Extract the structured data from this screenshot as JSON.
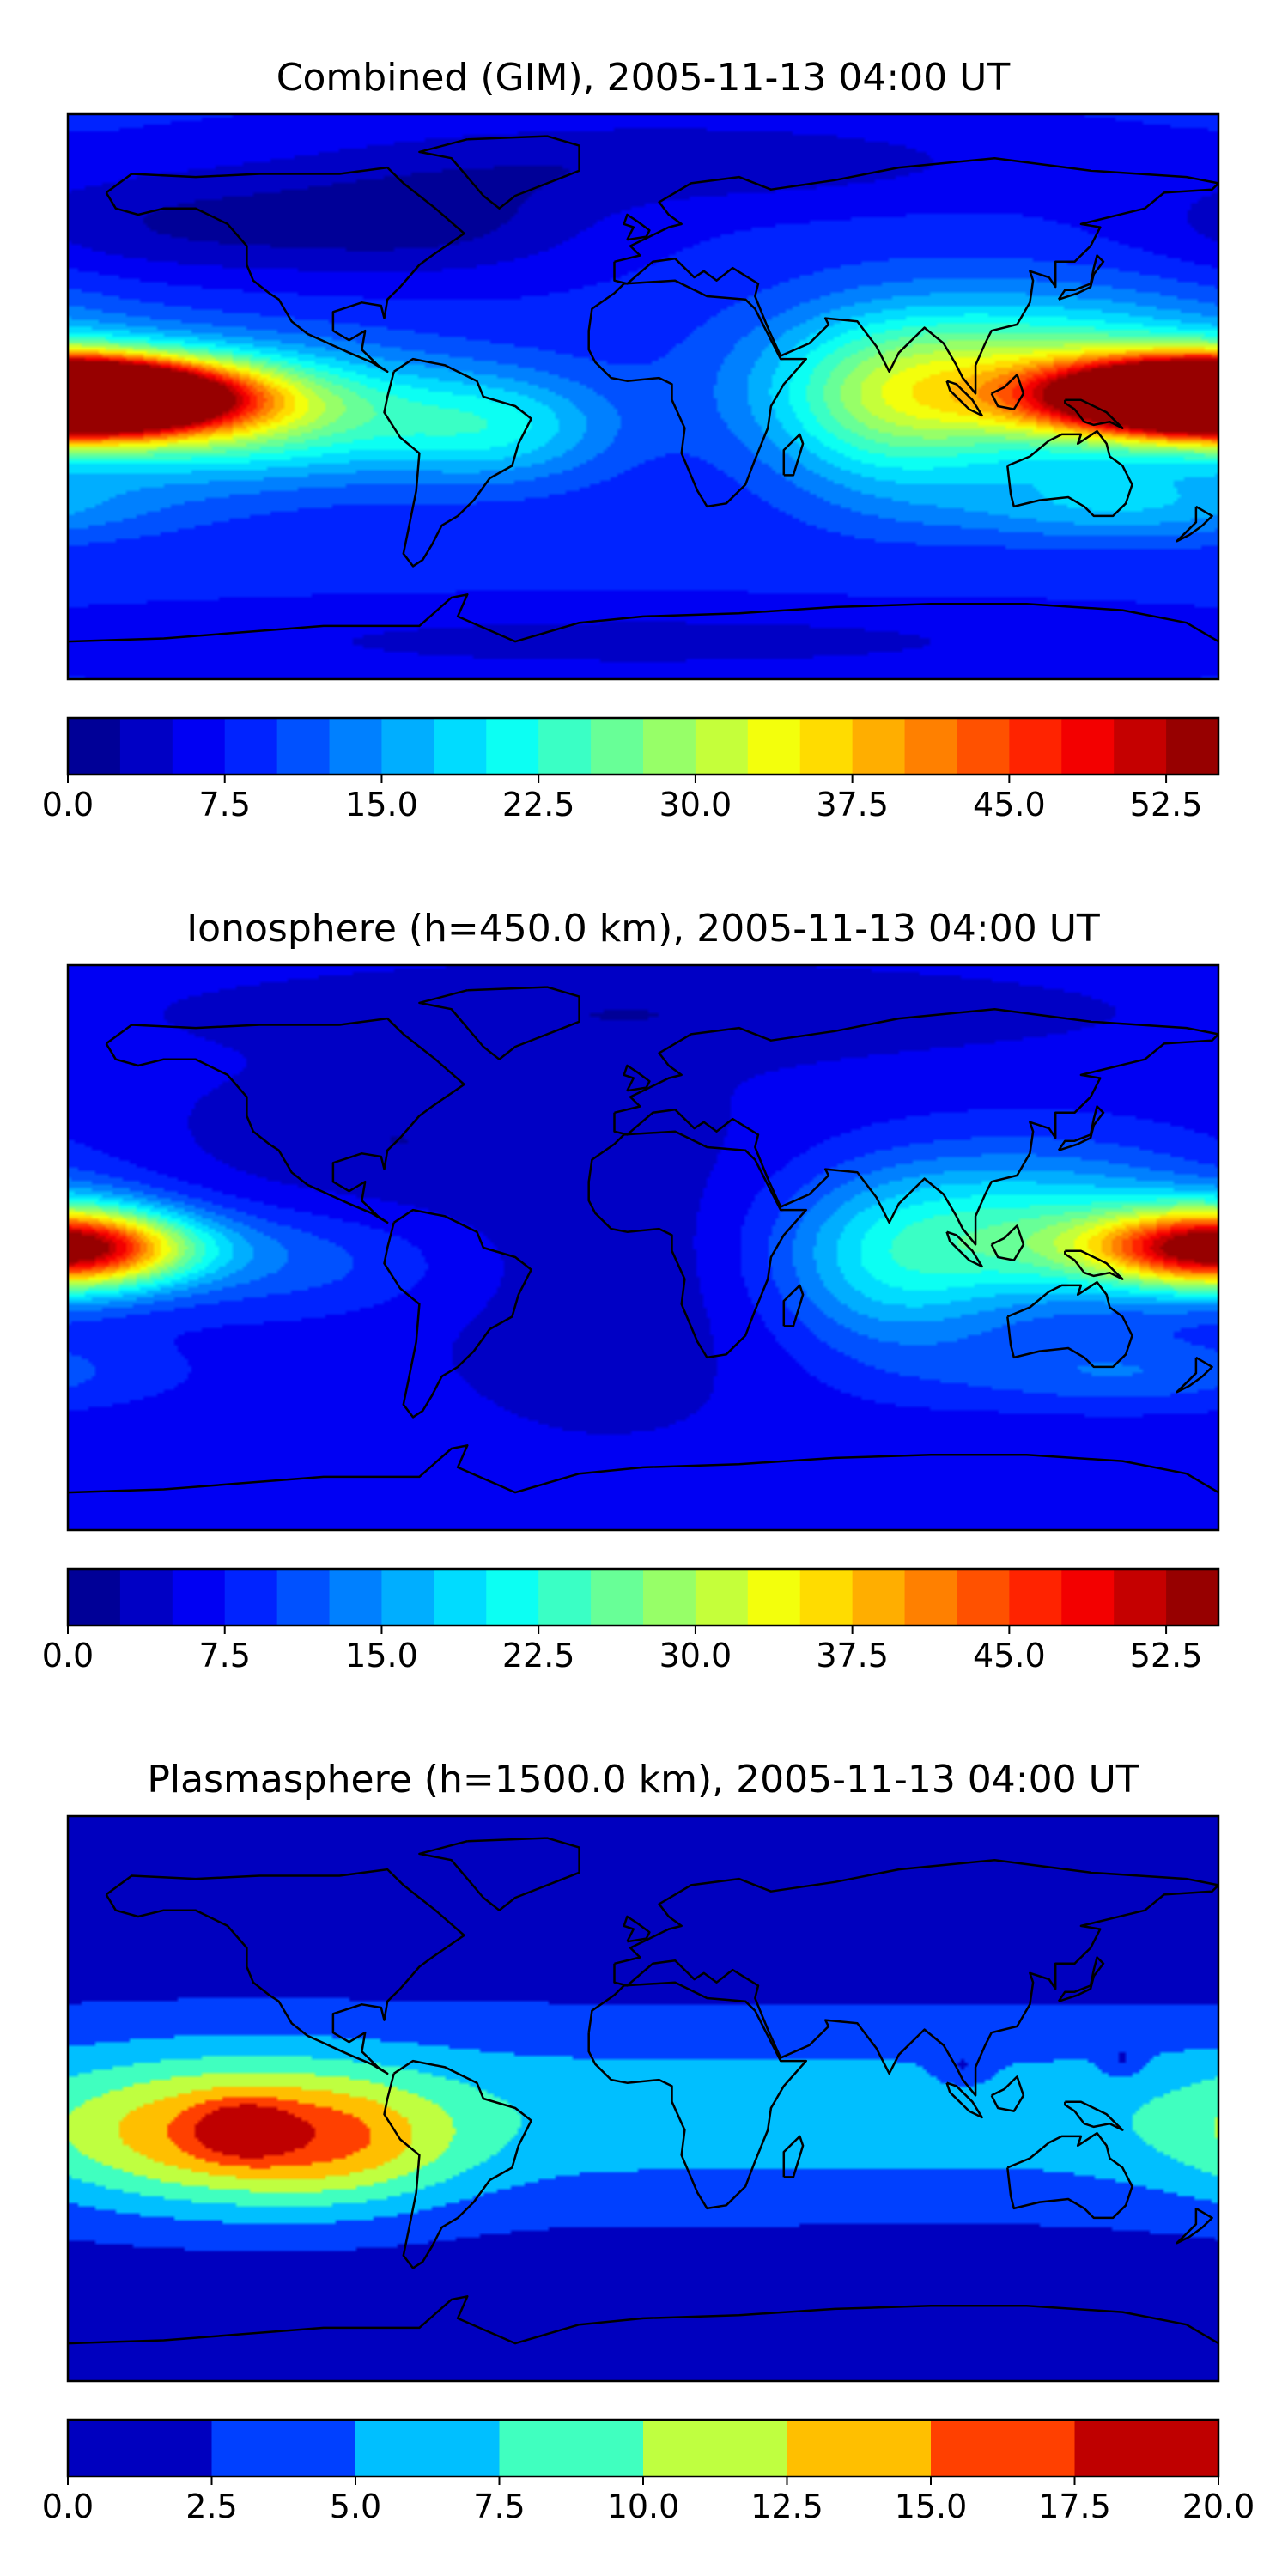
{
  "chart_data": [
    {
      "type": "heatmap",
      "title": "Combined (GIM), 2005-11-13 04:00 UT",
      "colorbar": {
        "min": 0,
        "max": 55,
        "levels": 22,
        "step": 2.5,
        "ticks": [
          0,
          7.5,
          15,
          22.5,
          30,
          37.5,
          45,
          52.5
        ],
        "tick_labels": [
          "0.0",
          "7.5",
          "15.0",
          "22.5",
          "30.0",
          "37.5",
          "45.0",
          "52.5"
        ]
      },
      "background_value": 8,
      "features": [
        {
          "name": "Pacific equatorial max",
          "lon": -178,
          "lat": 0,
          "peak": 43,
          "sx": 30,
          "sy": 8
        },
        {
          "name": "Pacific anomaly belt",
          "lon": -125,
          "lat": -5,
          "peak": 20,
          "sx": 45,
          "sy": 14
        },
        {
          "name": "South America crest",
          "lon": -45,
          "lat": -10,
          "peak": 10,
          "sx": 25,
          "sy": 12
        },
        {
          "name": "Maritime continent max",
          "lon": 178,
          "lat": 0,
          "peak": 45,
          "sx": 35,
          "sy": 8
        },
        {
          "name": "Asia-Pacific crest",
          "lon": 120,
          "lat": 5,
          "peak": 22,
          "sx": 50,
          "sy": 18
        },
        {
          "name": "Indian Ocean crest",
          "lon": 75,
          "lat": -5,
          "peak": 10,
          "sx": 25,
          "sy": 20
        },
        {
          "name": "Southern Pacific band",
          "lon": 150,
          "lat": -35,
          "peak": 8,
          "sx": 40,
          "sy": 8
        },
        {
          "name": "North Pacific low",
          "lon": -150,
          "lat": 55,
          "peak": -5,
          "sx": 40,
          "sy": 12
        },
        {
          "name": "North Atlantic low",
          "lon": -70,
          "lat": 55,
          "peak": -6,
          "sx": 40,
          "sy": 12
        },
        {
          "name": "Arctic low",
          "lon": 10,
          "lat": 75,
          "peak": -5,
          "sx": 80,
          "sy": 10
        },
        {
          "name": "Antarctic low",
          "lon": 0,
          "lat": -78,
          "peak": -4,
          "sx": 120,
          "sy": 8
        }
      ]
    },
    {
      "type": "heatmap",
      "title": "Ionosphere  (h=450.0 km), 2005-11-13 04:00 UT",
      "colorbar": {
        "min": 0,
        "max": 55,
        "levels": 22,
        "step": 2.5,
        "ticks": [
          0,
          7.5,
          15,
          22.5,
          30,
          37.5,
          45,
          52.5
        ],
        "tick_labels": [
          "0.0",
          "7.5",
          "15.0",
          "22.5",
          "30.0",
          "37.5",
          "45.0",
          "52.5"
        ]
      },
      "background_value": 6,
      "features": [
        {
          "name": "Pacific equatorial max",
          "lon": -178,
          "lat": 0,
          "peak": 19,
          "sx": 22,
          "sy": 10
        },
        {
          "name": "Maritime continent max",
          "lon": 178,
          "lat": 0,
          "peak": 27,
          "sx": 30,
          "sy": 8
        },
        {
          "name": "Asia-Pacific crest",
          "lon": 120,
          "lat": 5,
          "peak": 16,
          "sx": 45,
          "sy": 18
        },
        {
          "name": "Indian Ocean crest",
          "lon": 75,
          "lat": -10,
          "peak": 8,
          "sx": 25,
          "sy": 20
        },
        {
          "name": "Southern Pacific band",
          "lon": 150,
          "lat": -40,
          "peak": 6,
          "sx": 40,
          "sy": 8
        },
        {
          "name": "Pacific belt",
          "lon": -110,
          "lat": -5,
          "peak": 5,
          "sx": 40,
          "sy": 12
        },
        {
          "name": "Africa-Atlantic low",
          "lon": -10,
          "lat": 0,
          "peak": -3,
          "sx": 45,
          "sy": 40
        },
        {
          "name": "Americas low",
          "lon": -90,
          "lat": 35,
          "peak": -3,
          "sx": 40,
          "sy": 15
        },
        {
          "name": "Arctic low",
          "lon": 0,
          "lat": 75,
          "peak": -3,
          "sx": 100,
          "sy": 10
        }
      ]
    },
    {
      "type": "heatmap",
      "title": "Plasmasphere (h=1500.0 km), 2005-11-13 04:00 UT",
      "colorbar": {
        "min": 0,
        "max": 20,
        "levels": 8,
        "step": 2.5,
        "ticks": [
          0,
          2.5,
          5,
          7.5,
          10,
          12.5,
          15,
          17.5,
          20
        ],
        "tick_labels": [
          "0.0",
          "2.5",
          "5.0",
          "7.5",
          "10.0",
          "12.5",
          "15.0",
          "17.5",
          "20.0"
        ]
      },
      "background_value": 1,
      "features": [
        {
          "name": "Equatorial band",
          "lon": 0,
          "lat": -5,
          "peak": 5.5,
          "sx": 400,
          "sy": 22
        },
        {
          "name": "Pacific plasmasphere bulge",
          "lon": -130,
          "lat": -12,
          "peak": 9.5,
          "sx": 40,
          "sy": 16
        },
        {
          "name": "Pacific core max",
          "lon": -125,
          "lat": -10,
          "peak": 6,
          "sx": 10,
          "sy": 6
        },
        {
          "name": "South America extension",
          "lon": -90,
          "lat": -15,
          "peak": 4,
          "sx": 25,
          "sy": 14
        },
        {
          "name": "Western Pacific patch",
          "lon": 100,
          "lat": 10,
          "peak": -2.8,
          "sx": 6,
          "sy": 4
        },
        {
          "name": "Western Pacific patch east",
          "lon": 150,
          "lat": 12,
          "peak": -2.8,
          "sx": 4,
          "sy": 4
        }
      ]
    }
  ],
  "coastline_outlines": [
    {
      "name": "north-america",
      "points": [
        [
          -168,
          65
        ],
        [
          -160,
          71
        ],
        [
          -140,
          70
        ],
        [
          -120,
          71
        ],
        [
          -95,
          71
        ],
        [
          -80,
          73
        ],
        [
          -75,
          68
        ],
        [
          -65,
          60
        ],
        [
          -56,
          52
        ],
        [
          -66,
          45
        ],
        [
          -70,
          42
        ],
        [
          -76,
          35
        ],
        [
          -80,
          31
        ],
        [
          -81,
          25
        ],
        [
          -82,
          29
        ],
        [
          -88,
          30
        ],
        [
          -97,
          27
        ],
        [
          -97,
          21
        ],
        [
          -92,
          18
        ],
        [
          -87,
          21
        ],
        [
          -88,
          15
        ],
        [
          -83,
          10
        ],
        [
          -80,
          8
        ],
        [
          -85,
          11
        ],
        [
          -92,
          14
        ],
        [
          -105,
          20
        ],
        [
          -110,
          24
        ],
        [
          -114,
          31
        ],
        [
          -117,
          33
        ],
        [
          -122,
          37
        ],
        [
          -124,
          42
        ],
        [
          -124,
          48
        ],
        [
          -130,
          55
        ],
        [
          -140,
          60
        ],
        [
          -150,
          60
        ],
        [
          -158,
          58
        ],
        [
          -165,
          60
        ],
        [
          -168,
          65
        ]
      ]
    },
    {
      "name": "greenland",
      "points": [
        [
          -55,
          82
        ],
        [
          -30,
          83
        ],
        [
          -20,
          80
        ],
        [
          -20,
          72
        ],
        [
          -30,
          68
        ],
        [
          -40,
          64
        ],
        [
          -45,
          60
        ],
        [
          -50,
          64
        ],
        [
          -55,
          70
        ],
        [
          -60,
          76
        ],
        [
          -70,
          78
        ],
        [
          -55,
          82
        ]
      ]
    },
    {
      "name": "south-america",
      "points": [
        [
          -78,
          8
        ],
        [
          -72,
          12
        ],
        [
          -62,
          10
        ],
        [
          -52,
          5
        ],
        [
          -50,
          0
        ],
        [
          -40,
          -3
        ],
        [
          -35,
          -7
        ],
        [
          -39,
          -15
        ],
        [
          -41,
          -22
        ],
        [
          -48,
          -26
        ],
        [
          -53,
          -33
        ],
        [
          -58,
          -38
        ],
        [
          -63,
          -41
        ],
        [
          -66,
          -47
        ],
        [
          -69,
          -52
        ],
        [
          -72,
          -54
        ],
        [
          -75,
          -50
        ],
        [
          -73,
          -40
        ],
        [
          -71,
          -30
        ],
        [
          -70,
          -18
        ],
        [
          -76,
          -13
        ],
        [
          -81,
          -5
        ],
        [
          -80,
          0
        ],
        [
          -78,
          8
        ]
      ]
    },
    {
      "name": "africa",
      "points": [
        [
          -17,
          21
        ],
        [
          -16,
          28
        ],
        [
          -9,
          33
        ],
        [
          -6,
          36
        ],
        [
          10,
          37
        ],
        [
          20,
          32
        ],
        [
          32,
          31
        ],
        [
          35,
          28
        ],
        [
          43,
          12
        ],
        [
          51,
          12
        ],
        [
          44,
          4
        ],
        [
          40,
          -3
        ],
        [
          39,
          -10
        ],
        [
          35,
          -20
        ],
        [
          32,
          -28
        ],
        [
          26,
          -34
        ],
        [
          20,
          -35
        ],
        [
          17,
          -30
        ],
        [
          12,
          -18
        ],
        [
          13,
          -10
        ],
        [
          9,
          -1
        ],
        [
          9,
          4
        ],
        [
          5,
          6
        ],
        [
          -5,
          5
        ],
        [
          -10,
          6
        ],
        [
          -15,
          11
        ],
        [
          -17,
          15
        ],
        [
          -17,
          21
        ]
      ]
    },
    {
      "name": "eurasia",
      "points": [
        [
          -9,
          43
        ],
        [
          -9,
          37
        ],
        [
          -5,
          36
        ],
        [
          3,
          43
        ],
        [
          10,
          44
        ],
        [
          16,
          38
        ],
        [
          19,
          40
        ],
        [
          23,
          37
        ],
        [
          28,
          41
        ],
        [
          36,
          36
        ],
        [
          35,
          32
        ],
        [
          39,
          22
        ],
        [
          43,
          13
        ],
        [
          52,
          17
        ],
        [
          58,
          23
        ],
        [
          57,
          25
        ],
        [
          67,
          24
        ],
        [
          73,
          16
        ],
        [
          77,
          8
        ],
        [
          80,
          14
        ],
        [
          88,
          22
        ],
        [
          94,
          17
        ],
        [
          98,
          10
        ],
        [
          100,
          6
        ],
        [
          104,
          1
        ],
        [
          104,
          10
        ],
        [
          107,
          17
        ],
        [
          109,
          21
        ],
        [
          117,
          23
        ],
        [
          121,
          30
        ],
        [
          122,
          37
        ],
        [
          121,
          40
        ],
        [
          127,
          38
        ],
        [
          129,
          35
        ],
        [
          129,
          43
        ],
        [
          135,
          43
        ],
        [
          140,
          48
        ],
        [
          143,
          54
        ],
        [
          137,
          55
        ],
        [
          157,
          60
        ],
        [
          163,
          65
        ],
        [
          178,
          66
        ],
        [
          180,
          68
        ],
        [
          170,
          70
        ],
        [
          140,
          72
        ],
        [
          110,
          76
        ],
        [
          80,
          73
        ],
        [
          60,
          69
        ],
        [
          40,
          66
        ],
        [
          30,
          70
        ],
        [
          15,
          68
        ],
        [
          5,
          62
        ],
        [
          8,
          58
        ],
        [
          12,
          55
        ],
        [
          8,
          54
        ],
        [
          0,
          50
        ],
        [
          -4,
          48
        ],
        [
          -1,
          45
        ],
        [
          -9,
          43
        ]
      ]
    },
    {
      "name": "australia",
      "points": [
        [
          114,
          -22
        ],
        [
          121,
          -19
        ],
        [
          127,
          -14
        ],
        [
          131,
          -12
        ],
        [
          137,
          -12
        ],
        [
          136,
          -15
        ],
        [
          142,
          -11
        ],
        [
          145,
          -15
        ],
        [
          146,
          -19
        ],
        [
          150,
          -22
        ],
        [
          153,
          -28
        ],
        [
          151,
          -34
        ],
        [
          147,
          -38
        ],
        [
          141,
          -38
        ],
        [
          138,
          -35
        ],
        [
          133,
          -32
        ],
        [
          124,
          -33
        ],
        [
          116,
          -35
        ],
        [
          115,
          -31
        ],
        [
          114,
          -22
        ]
      ]
    },
    {
      "name": "borneo",
      "points": [
        [
          109,
          1
        ],
        [
          111,
          -3
        ],
        [
          116,
          -4
        ],
        [
          119,
          1
        ],
        [
          117,
          7
        ],
        [
          113,
          3
        ],
        [
          109,
          1
        ]
      ]
    },
    {
      "name": "sumatra",
      "points": [
        [
          95,
          5
        ],
        [
          98,
          4
        ],
        [
          103,
          -1
        ],
        [
          106,
          -6
        ],
        [
          102,
          -4
        ],
        [
          96,
          2
        ],
        [
          95,
          5
        ]
      ]
    },
    {
      "name": "new-guinea",
      "points": [
        [
          132,
          -1
        ],
        [
          137,
          -1
        ],
        [
          141,
          -3
        ],
        [
          145,
          -5
        ],
        [
          150,
          -10
        ],
        [
          146,
          -8
        ],
        [
          141,
          -9
        ],
        [
          138,
          -8
        ],
        [
          135,
          -4
        ],
        [
          132,
          -2
        ],
        [
          132,
          -1
        ]
      ]
    },
    {
      "name": "japan",
      "points": [
        [
          130,
          31
        ],
        [
          132,
          34
        ],
        [
          135,
          34
        ],
        [
          140,
          36
        ],
        [
          141,
          41
        ],
        [
          142,
          45
        ],
        [
          144,
          43
        ],
        [
          141,
          39
        ],
        [
          140,
          35
        ],
        [
          136,
          33
        ],
        [
          130,
          31
        ]
      ]
    },
    {
      "name": "great-britain",
      "points": [
        [
          -5,
          50
        ],
        [
          1,
          51
        ],
        [
          2,
          53
        ],
        [
          -2,
          56
        ],
        [
          -5,
          58
        ],
        [
          -6,
          55
        ],
        [
          -3,
          54
        ],
        [
          -5,
          50
        ]
      ]
    },
    {
      "name": "madagascar",
      "points": [
        [
          44,
          -25
        ],
        [
          47,
          -25
        ],
        [
          50,
          -15
        ],
        [
          49,
          -12
        ],
        [
          44,
          -17
        ],
        [
          44,
          -25
        ]
      ]
    },
    {
      "name": "new-zealand",
      "points": [
        [
          173,
          -35
        ],
        [
          178,
          -38
        ],
        [
          175,
          -41
        ],
        [
          171,
          -44
        ],
        [
          167,
          -46
        ],
        [
          170,
          -43
        ],
        [
          173,
          -40
        ],
        [
          173,
          -35
        ]
      ]
    },
    {
      "name": "antarctica",
      "points": [
        [
          -180,
          -78
        ],
        [
          -150,
          -77
        ],
        [
          -100,
          -73
        ],
        [
          -70,
          -73
        ],
        [
          -60,
          -64
        ],
        [
          -55,
          -63
        ],
        [
          -58,
          -70
        ],
        [
          -40,
          -78
        ],
        [
          -20,
          -72
        ],
        [
          0,
          -70
        ],
        [
          30,
          -69
        ],
        [
          60,
          -67
        ],
        [
          90,
          -66
        ],
        [
          120,
          -66
        ],
        [
          150,
          -68
        ],
        [
          170,
          -72
        ],
        [
          180,
          -78
        ]
      ]
    }
  ]
}
